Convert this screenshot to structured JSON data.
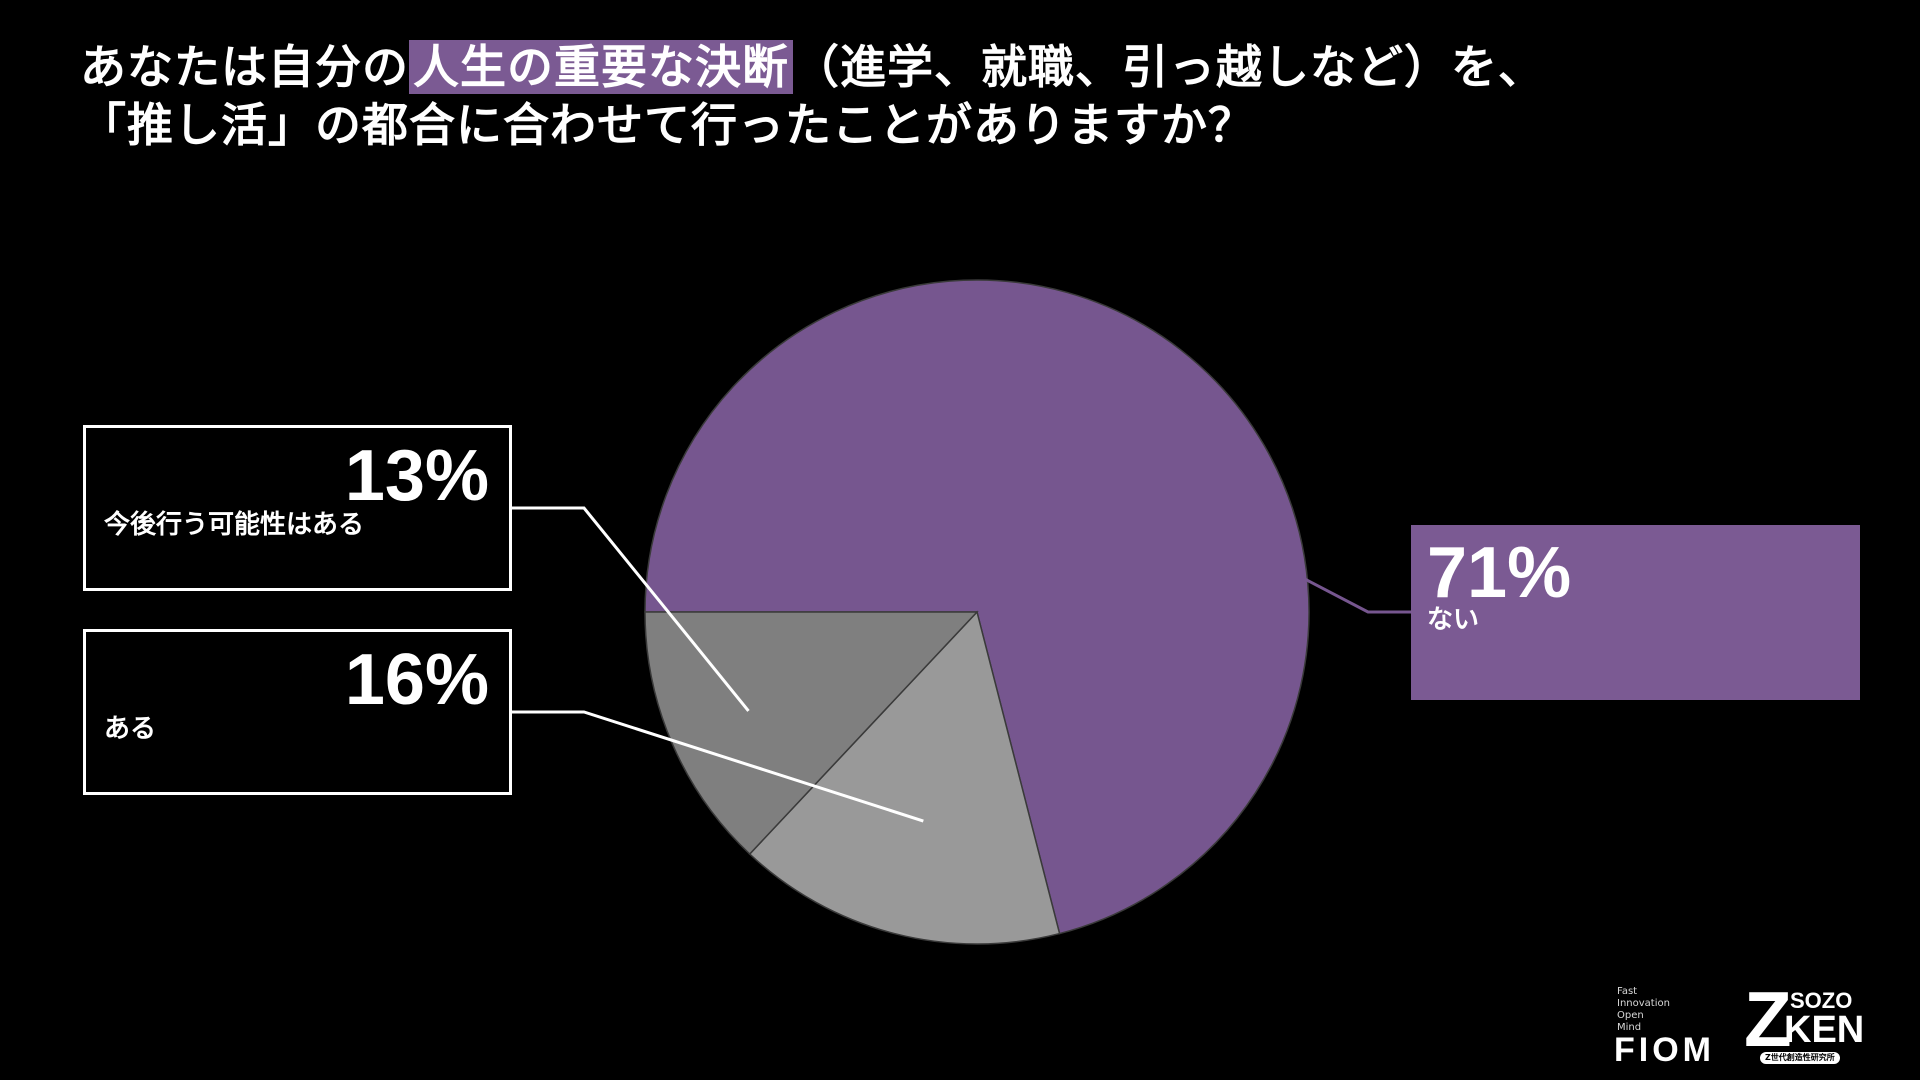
{
  "question": {
    "line1_pre": "あなたは自分の",
    "line1_highlight": "人生の重要な決断",
    "line1_post": "（進学、就職、引っ越しなど）を、",
    "line2": "「推し活」の都合に合わせて行ったことがありますか？"
  },
  "colors": {
    "accent": "#7b5a93",
    "background": "#000000",
    "slice_nai": "#76568f",
    "slice_aru": "#999999",
    "slice_kanousei": "#7f7f7f"
  },
  "chart_data": {
    "type": "pie",
    "title": "",
    "slices": [
      {
        "label": "ない",
        "value": 71,
        "display": "71%"
      },
      {
        "label": "ある",
        "value": 16,
        "display": "16%"
      },
      {
        "label": "今後行う可能性はある",
        "value": 13,
        "display": "13%"
      }
    ]
  },
  "logos": {
    "fiom_small": [
      "Fast",
      "Innovation",
      "Open",
      "Mind"
    ],
    "fiom": "FIOM",
    "sozo_top": "SOZO",
    "sozo_ken": "KEN",
    "sozo_tag": "Z世代創造性研究所"
  }
}
